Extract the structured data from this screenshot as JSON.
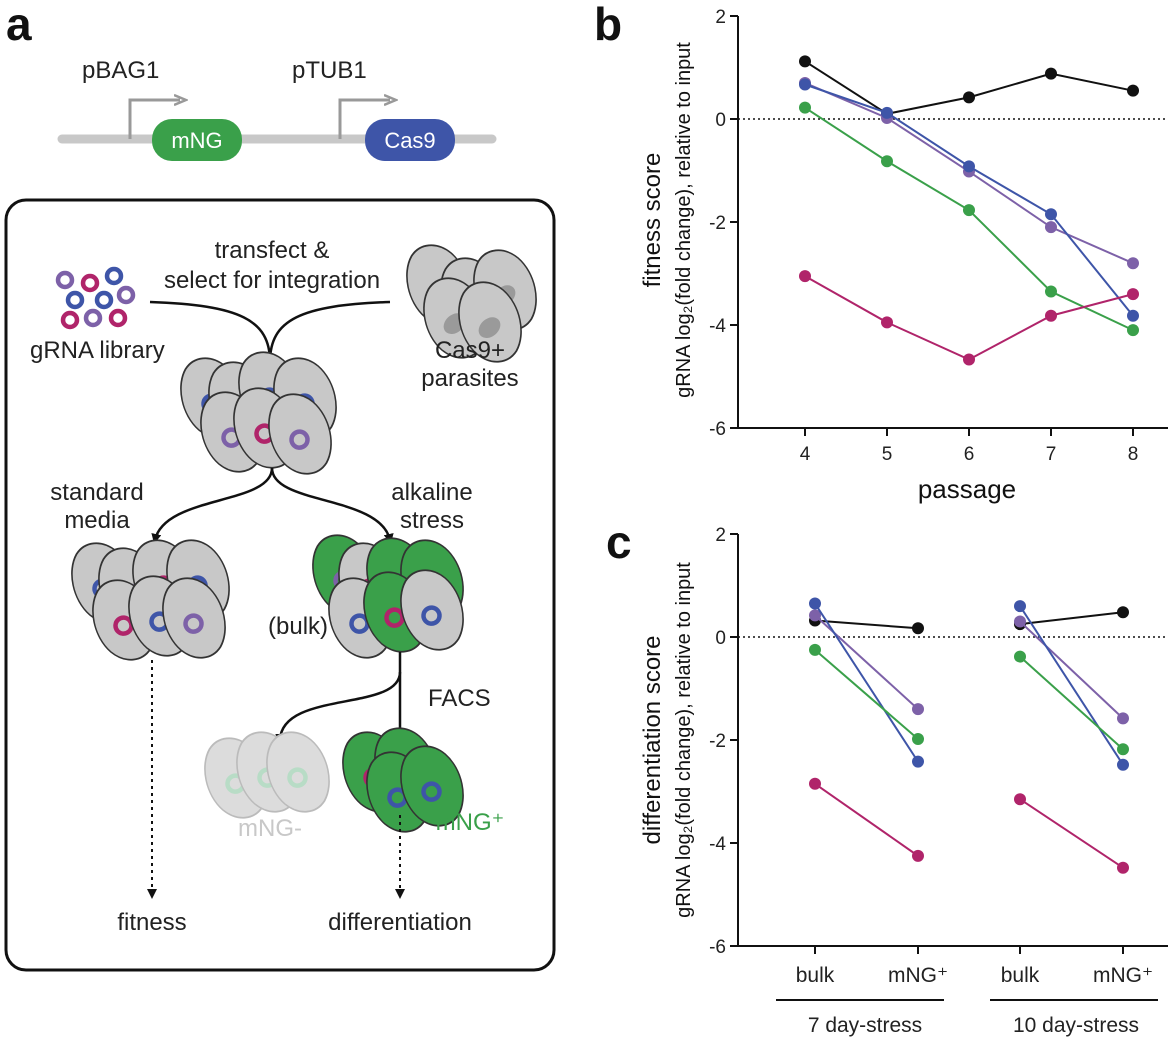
{
  "panel_a": {
    "letter": "a",
    "promoter1": "pBAG1",
    "promoter2": "pTUB1",
    "gene1": "mNG",
    "gene2": "Cas9",
    "transfect": "transfect &",
    "select": "select for integration",
    "library": "gRNA library",
    "cas9_plus": "Cas9+",
    "parasites": "parasites",
    "standard": "standard",
    "media": "media",
    "alkaline": "alkaline",
    "stress": "stress",
    "bulk": "(bulk)",
    "facs": "FACS",
    "mng_neg": "mNG-",
    "mng_pos": "mNG⁺",
    "fitness": "fitness",
    "differentiation": "differentiation",
    "colors": {
      "green": "#3aa04a",
      "blue": "#3e55a8",
      "magenta": "#b0246a",
      "purple": "#7d61a8",
      "grey": "#c3c3c3"
    }
  },
  "chart_data": [
    {
      "panel": "b",
      "type": "line",
      "ylabel_line1": "fitness score",
      "ylabel_line2": "gRNA log₂(fold change), relative to input",
      "xlabel": "passage",
      "x": [
        4,
        5,
        6,
        7,
        8
      ],
      "ylim": [
        -6,
        2
      ],
      "yticks": [
        2,
        0,
        -2,
        -4,
        -6
      ],
      "reference_line": 0,
      "series": [
        {
          "color": "#111111",
          "values": [
            1.12,
            0.1,
            0.42,
            0.88,
            0.55
          ]
        },
        {
          "color": "#7d61a8",
          "values": [
            0.7,
            0.02,
            -1.02,
            -2.1,
            -2.8
          ]
        },
        {
          "color": "#3e55a8",
          "values": [
            0.67,
            0.12,
            -0.92,
            -1.85,
            -3.82
          ]
        },
        {
          "color": "#3aa04a",
          "values": [
            0.22,
            -0.82,
            -1.77,
            -3.35,
            -4.1
          ]
        },
        {
          "color": "#b0246a",
          "values": [
            -3.05,
            -3.95,
            -4.67,
            -3.82,
            -3.4
          ]
        }
      ]
    },
    {
      "panel": "c",
      "type": "line",
      "ylabel_line1": "differentiation score",
      "ylabel_line2": "gRNA log₂(fold change), relative to input",
      "categories": [
        "bulk",
        "mNG⁺",
        "bulk",
        "mNG⁺"
      ],
      "groups": [
        "7 day-stress",
        "10 day-stress"
      ],
      "ylim": [
        -6,
        2
      ],
      "yticks": [
        2,
        0,
        -2,
        -4,
        -6
      ],
      "reference_line": 0,
      "series": [
        {
          "color": "#111111",
          "group1": [
            0.32,
            0.17
          ],
          "group2": [
            0.25,
            0.48
          ]
        },
        {
          "color": "#7d61a8",
          "group1": [
            0.42,
            -1.4
          ],
          "group2": [
            0.3,
            -1.58
          ]
        },
        {
          "color": "#3e55a8",
          "group1": [
            0.65,
            -2.42
          ],
          "group2": [
            0.6,
            -2.48
          ]
        },
        {
          "color": "#3aa04a",
          "group1": [
            -0.25,
            -1.98
          ],
          "group2": [
            -0.38,
            -2.18
          ]
        },
        {
          "color": "#b0246a",
          "group1": [
            -2.85,
            -4.25
          ],
          "group2": [
            -3.15,
            -4.48
          ]
        }
      ]
    }
  ]
}
